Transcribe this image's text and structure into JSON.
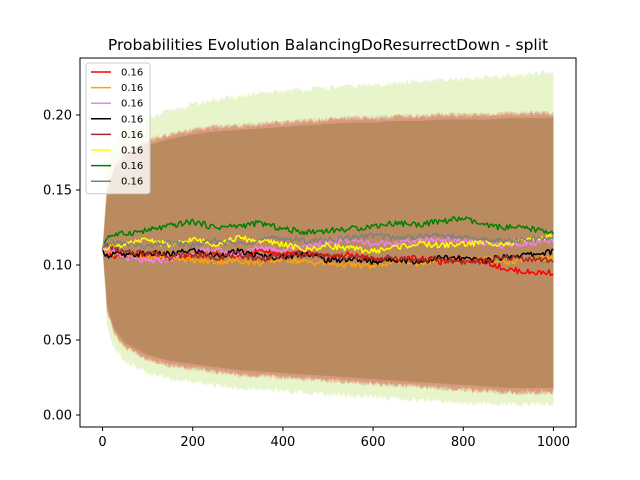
{
  "chart_data": {
    "type": "line",
    "title": "Probabilities Evolution BalancingDoResurrectDown  - split",
    "xlabel": "",
    "ylabel": "",
    "xlim": [
      -50,
      1050
    ],
    "ylim": [
      -0.008,
      0.238
    ],
    "xticks": [
      0,
      200,
      400,
      600,
      800,
      1000
    ],
    "yticks": [
      0.0,
      0.05,
      0.1,
      0.15,
      0.2
    ],
    "xtick_labels": [
      "0",
      "200",
      "400",
      "600",
      "800",
      "1000"
    ],
    "ytick_labels": [
      "0.00",
      "0.05",
      "0.10",
      "0.15",
      "0.20"
    ],
    "grid": false,
    "legend_position": "top-left",
    "x": [
      0,
      10,
      25,
      50,
      100,
      150,
      200,
      250,
      300,
      350,
      400,
      450,
      500,
      550,
      600,
      650,
      700,
      750,
      800,
      850,
      900,
      950,
      1000
    ],
    "bands": {
      "lower": [
        0.111,
        0.07,
        0.055,
        0.045,
        0.037,
        0.033,
        0.031,
        0.029,
        0.027,
        0.026,
        0.025,
        0.024,
        0.023,
        0.022,
        0.021,
        0.02,
        0.019,
        0.018,
        0.017,
        0.016,
        0.015,
        0.015,
        0.015
      ],
      "upper": [
        0.111,
        0.15,
        0.165,
        0.175,
        0.183,
        0.187,
        0.19,
        0.192,
        0.193,
        0.194,
        0.195,
        0.196,
        0.197,
        0.198,
        0.198,
        0.199,
        0.199,
        0.2,
        0.2,
        0.2,
        0.201,
        0.201,
        0.201
      ],
      "outer_lower": [
        0.111,
        0.06,
        0.045,
        0.035,
        0.028,
        0.024,
        0.022,
        0.02,
        0.018,
        0.017,
        0.016,
        0.015,
        0.014,
        0.013,
        0.012,
        0.011,
        0.01,
        0.009,
        0.008,
        0.008,
        0.007,
        0.007,
        0.007
      ],
      "outer_upper": [
        0.111,
        0.165,
        0.18,
        0.19,
        0.197,
        0.203,
        0.207,
        0.21,
        0.212,
        0.214,
        0.216,
        0.217,
        0.218,
        0.219,
        0.22,
        0.221,
        0.222,
        0.223,
        0.224,
        0.225,
        0.226,
        0.227,
        0.228
      ],
      "colors": [
        "#2ca02c",
        "#ffa500",
        "#ee82ee",
        "#a52a2a",
        "#ffff00",
        "#808080",
        "#ff0000"
      ]
    },
    "series": [
      {
        "name": "0.16",
        "color": "#ff0000",
        "values": [
          0.111,
          0.108,
          0.106,
          0.107,
          0.106,
          0.104,
          0.106,
          0.108,
          0.106,
          0.11,
          0.107,
          0.108,
          0.105,
          0.107,
          0.104,
          0.103,
          0.105,
          0.102,
          0.104,
          0.102,
          0.097,
          0.095,
          0.095
        ]
      },
      {
        "name": "0.16",
        "color": "#ffa500",
        "values": [
          0.111,
          0.109,
          0.108,
          0.107,
          0.104,
          0.106,
          0.103,
          0.102,
          0.103,
          0.101,
          0.104,
          0.102,
          0.101,
          0.1,
          0.099,
          0.103,
          0.101,
          0.104,
          0.103,
          0.104,
          0.102,
          0.104,
          0.105
        ]
      },
      {
        "name": "0.16",
        "color": "#ee82ee",
        "values": [
          0.111,
          0.11,
          0.108,
          0.105,
          0.102,
          0.104,
          0.109,
          0.11,
          0.107,
          0.112,
          0.11,
          0.113,
          0.115,
          0.117,
          0.114,
          0.115,
          0.116,
          0.117,
          0.116,
          0.114,
          0.113,
          0.115,
          0.116
        ]
      },
      {
        "name": "0.16",
        "color": "#000000",
        "values": [
          0.111,
          0.106,
          0.108,
          0.106,
          0.108,
          0.107,
          0.11,
          0.106,
          0.109,
          0.106,
          0.105,
          0.108,
          0.103,
          0.104,
          0.102,
          0.104,
          0.102,
          0.105,
          0.104,
          0.103,
          0.106,
          0.107,
          0.109
        ]
      },
      {
        "name": "0.16",
        "color": "#a52a2a",
        "values": [
          0.111,
          0.113,
          0.111,
          0.108,
          0.109,
          0.106,
          0.107,
          0.105,
          0.107,
          0.104,
          0.106,
          0.107,
          0.106,
          0.105,
          0.104,
          0.105,
          0.103,
          0.104,
          0.102,
          0.103,
          0.105,
          0.104,
          0.103
        ]
      },
      {
        "name": "0.16",
        "color": "#ffff00",
        "values": [
          0.111,
          0.112,
          0.114,
          0.113,
          0.117,
          0.113,
          0.117,
          0.114,
          0.118,
          0.116,
          0.114,
          0.11,
          0.113,
          0.111,
          0.109,
          0.112,
          0.114,
          0.113,
          0.114,
          0.115,
          0.114,
          0.117,
          0.119
        ]
      },
      {
        "name": "0.16",
        "color": "#008000",
        "values": [
          0.111,
          0.119,
          0.12,
          0.121,
          0.123,
          0.126,
          0.129,
          0.125,
          0.126,
          0.128,
          0.124,
          0.122,
          0.123,
          0.124,
          0.126,
          0.128,
          0.127,
          0.129,
          0.131,
          0.126,
          0.125,
          0.124,
          0.122
        ]
      },
      {
        "name": "0.16",
        "color": "#808080",
        "values": [
          0.111,
          0.113,
          0.115,
          0.114,
          0.112,
          0.115,
          0.113,
          0.116,
          0.114,
          0.117,
          0.118,
          0.116,
          0.117,
          0.118,
          0.12,
          0.118,
          0.119,
          0.12,
          0.118,
          0.117,
          0.116,
          0.117,
          0.118
        ]
      }
    ]
  }
}
